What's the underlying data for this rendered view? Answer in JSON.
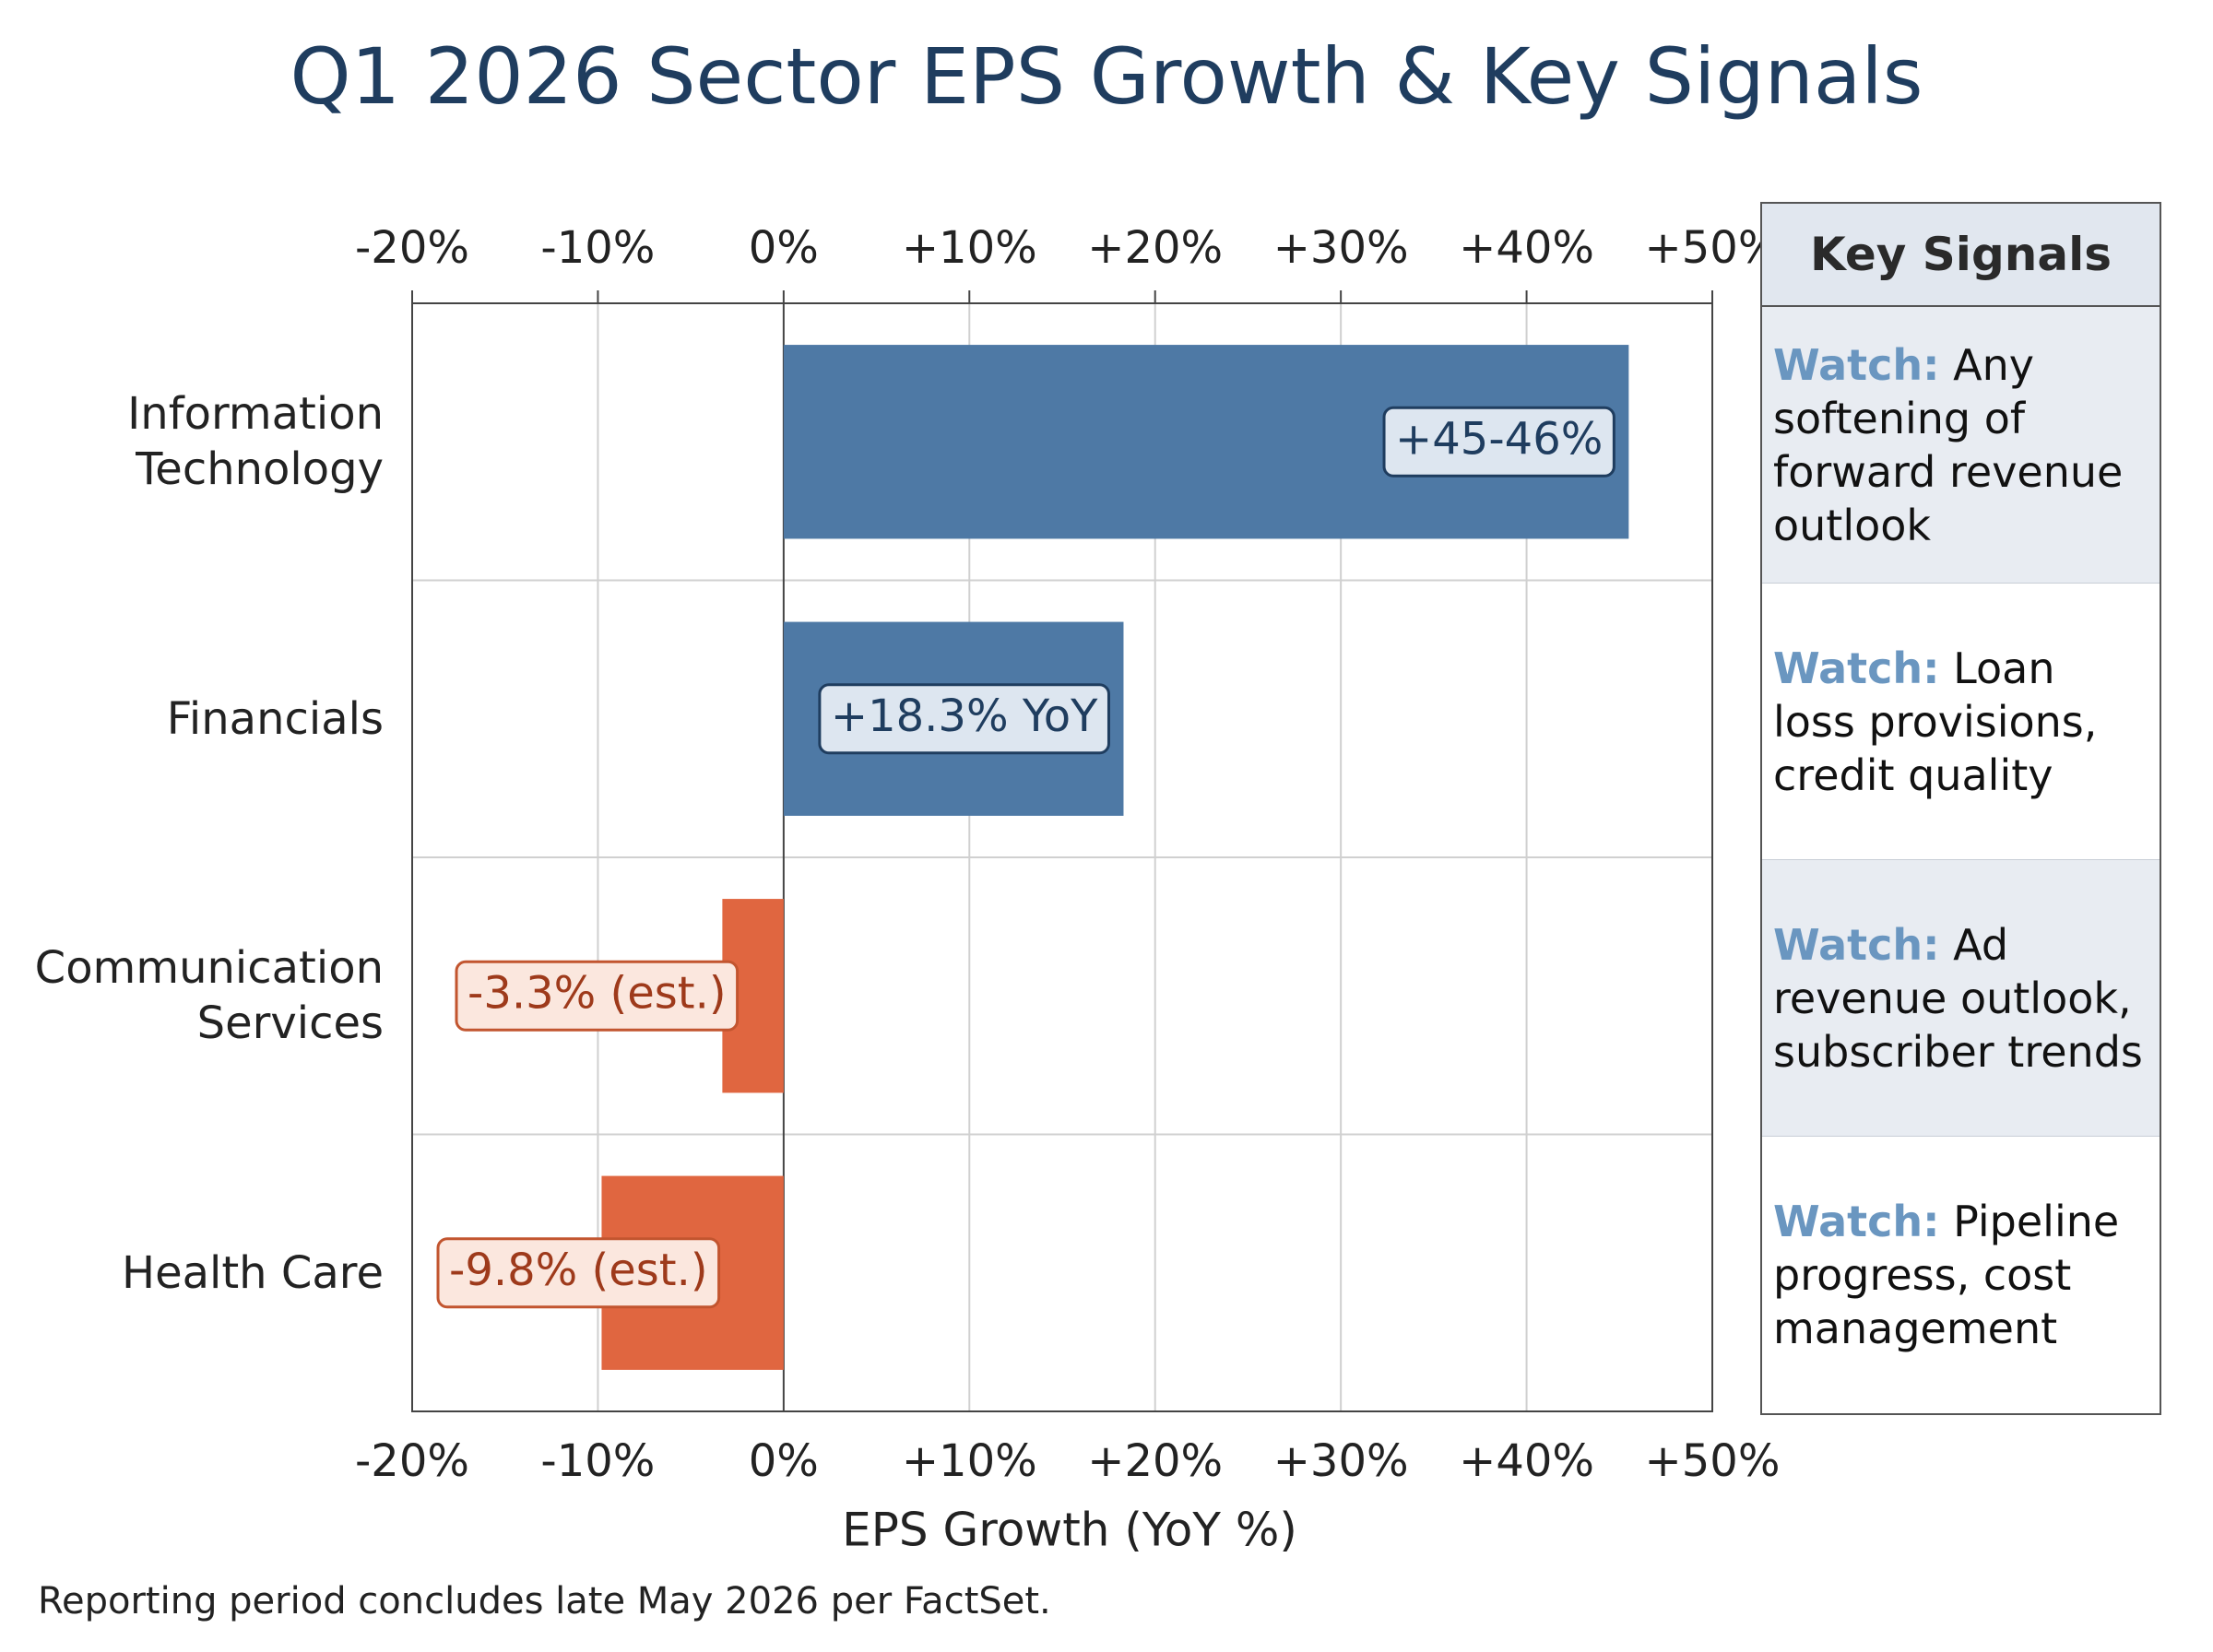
{
  "chart_data": {
    "type": "bar",
    "orientation": "horizontal",
    "title": "Q1 2026 Sector EPS Growth & Key Signals",
    "categories": [
      "Information Technology",
      "Financials",
      "Communication Services",
      "Health Care"
    ],
    "values": [
      45.5,
      18.3,
      -3.3,
      -9.8
    ],
    "value_labels": [
      "+45-46%",
      "+18.3% YoY",
      "-3.3% (est.)",
      "-9.8% (est.)"
    ],
    "colors": [
      "#4e79a5",
      "#4e79a5",
      "#e06640",
      "#e06640"
    ],
    "xlabel": "EPS Growth (YoY %)",
    "xlim": [
      -20,
      50
    ],
    "xticks": [
      {
        "value": -20,
        "label": "-20%"
      },
      {
        "value": -10,
        "label": "-10%"
      },
      {
        "value": 0,
        "label": "0%"
      },
      {
        "value": 10,
        "label": "+10%"
      },
      {
        "value": 20,
        "label": "+20%"
      },
      {
        "value": 30,
        "label": "+30%"
      },
      {
        "value": 40,
        "label": "+40%"
      },
      {
        "value": 50,
        "label": "+50%"
      }
    ],
    "grid": true,
    "signals_title": "Key Signals",
    "signals": [
      {
        "prefix": "Watch:",
        "text": "Any softening of forward revenue outlook"
      },
      {
        "prefix": "Watch:",
        "text": "Loan loss provisions, credit quality"
      },
      {
        "prefix": "Watch:",
        "text": "Ad revenue outlook, subscriber trends"
      },
      {
        "prefix": "Watch:",
        "text": "Pipeline progress, cost management"
      }
    ],
    "footnote": "Reporting period concludes late May 2026 per FactSet."
  }
}
